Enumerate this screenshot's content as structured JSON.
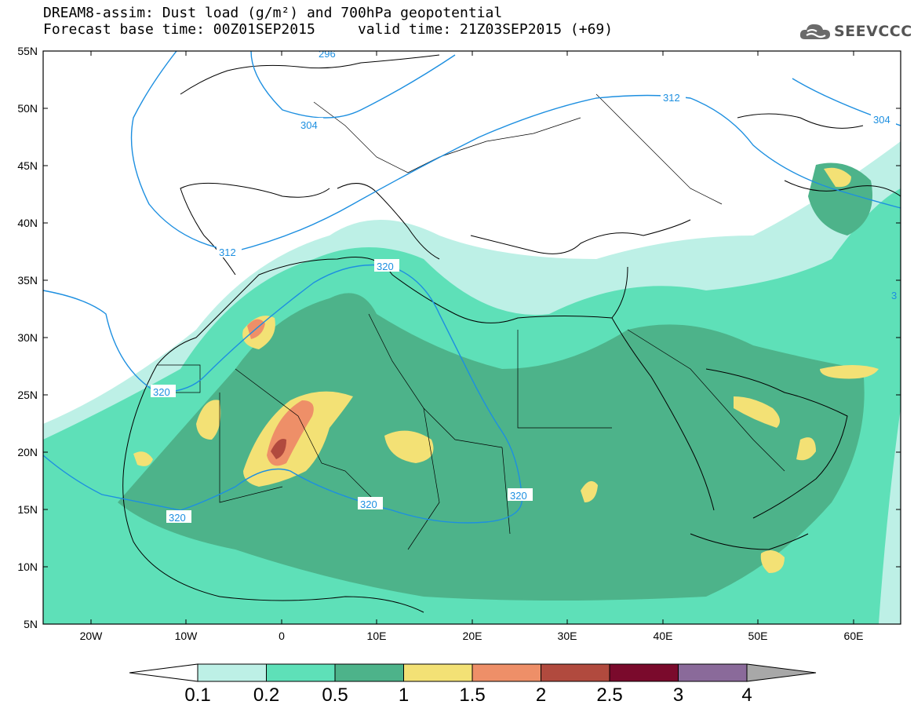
{
  "header": {
    "line1": "DREAM8-assim: Dust load (g/m²) and 700hPa geopotential",
    "line2_left": "Forecast base time: 00Z01SEP2015",
    "line2_right": "valid time: 21Z03SEP2015 (+69)"
  },
  "logo": {
    "text": "SEEVCCC",
    "icon": "cloud-icon"
  },
  "axes": {
    "lat_labels": [
      "55N",
      "50N",
      "45N",
      "40N",
      "35N",
      "30N",
      "25N",
      "20N",
      "15N",
      "10N",
      "5N"
    ],
    "lon_labels": [
      "20W",
      "10W",
      "0",
      "10E",
      "20E",
      "30E",
      "40E",
      "50E",
      "60E"
    ]
  },
  "contour_labels": [
    "296",
    "304",
    "312",
    "312",
    "304",
    "320",
    "320",
    "320",
    "320",
    "320",
    "3"
  ],
  "colorbar": {
    "colors": [
      "#bdf0e6",
      "#5ee0b8",
      "#4db38a",
      "#f3e175",
      "#ee8f68",
      "#b14a3e",
      "#7a0a2c",
      "#8a6a9a"
    ],
    "end_left_color": "#ffffff",
    "end_right_color": "#a8a8a8",
    "labels": [
      "0.1",
      "0.2",
      "0.5",
      "1",
      "1.5",
      "2",
      "2.5",
      "3",
      "4"
    ]
  }
}
